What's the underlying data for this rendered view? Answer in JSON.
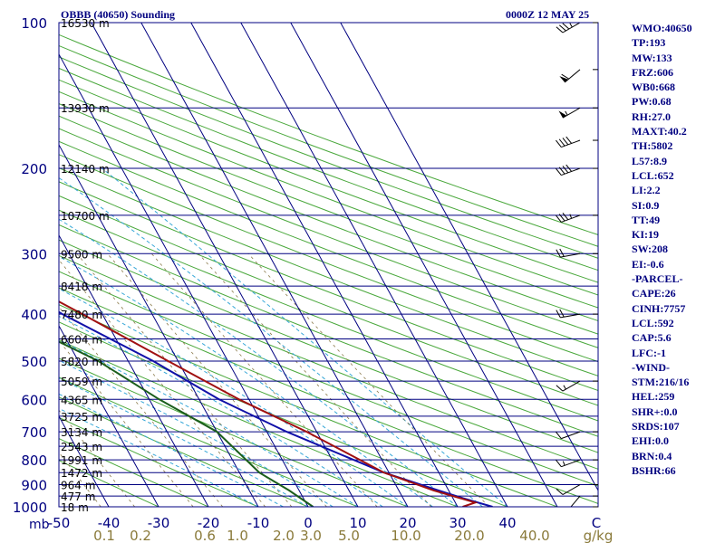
{
  "header": {
    "station": "OBBB (40650) Sounding",
    "time": "0000Z 12 MAY 25"
  },
  "indices": [
    "WMO:40650",
    "TP:193",
    "MW:133",
    "FRZ:606",
    "WB0:668",
    "PW:0.68",
    "RH:27.0",
    "MAXT:40.2",
    "TH:5802",
    "L57:8.9",
    "LCL:652",
    "LI:2.2",
    "SI:0.9",
    "TT:49",
    "KI:19",
    "SW:208",
    "EI:-0.6",
    "-PARCEL-",
    "CAPE:26",
    "CINH:7757",
    "LCL:592",
    "CAP:5.6",
    "LFC:-1",
    "-WIND-",
    "STM:216/16",
    "HEL:259",
    "SHR+:0.0",
    "SRDS:107",
    "EHI:0.0",
    "BRN:0.4",
    "BSHR:66"
  ],
  "colors": {
    "isobar": "#000080",
    "isotherm": "#000080",
    "dry_adiabat": "#4aa83c",
    "moist_adiabat": "#38a8d8",
    "mixing_ratio": "#8a7a4a",
    "temperature": "#a01010",
    "dewpoint": "#1b5e1b",
    "parcel": "#1010a8",
    "axis_text": "#000080",
    "mixing_ratio_text": "#8a7a3a"
  },
  "chart_data": {
    "type": "skew-t",
    "y_axis_label": "mb",
    "x_axis_label": "C",
    "mixing_ratio_unit": "g/kg",
    "pressure_ticks": [
      100,
      200,
      300,
      400,
      500,
      600,
      700,
      800,
      900,
      1000
    ],
    "temperature_ticks": [
      -50,
      -40,
      -30,
      -20,
      -10,
      0,
      10,
      20,
      30,
      40
    ],
    "mixing_ratio_ticks": [
      "0.1",
      "0.2",
      "0.6",
      "1.0",
      "2.0",
      "3.0",
      "5.0",
      "10.0",
      "20.0",
      "40.0"
    ],
    "height_labels": [
      {
        "p": 100,
        "label": "16530 m"
      },
      {
        "p": 150,
        "label": "13930 m"
      },
      {
        "p": 200,
        "label": "12140 m"
      },
      {
        "p": 250,
        "label": "10700 m"
      },
      {
        "p": 300,
        "label": "9500 m"
      },
      {
        "p": 350,
        "label": "8418 m"
      },
      {
        "p": 400,
        "label": "7480 m"
      },
      {
        "p": 450,
        "label": "6604 m"
      },
      {
        "p": 500,
        "label": "5820 m"
      },
      {
        "p": 550,
        "label": "5059 m"
      },
      {
        "p": 600,
        "label": "4365 m"
      },
      {
        "p": 650,
        "label": "3725 m"
      },
      {
        "p": 700,
        "label": "3134 m"
      },
      {
        "p": 750,
        "label": "2543 m"
      },
      {
        "p": 800,
        "label": "1991 m"
      },
      {
        "p": 850,
        "label": "1472 m"
      },
      {
        "p": 900,
        "label": "964 m"
      },
      {
        "p": 950,
        "label": "477 m"
      },
      {
        "p": 1000,
        "label": "18 m"
      }
    ],
    "temperature_profile": [
      [
        1000,
        31
      ],
      [
        980,
        34
      ],
      [
        925,
        27
      ],
      [
        850,
        19
      ],
      [
        700,
        8
      ],
      [
        600,
        -2
      ],
      [
        500,
        -12
      ],
      [
        400,
        -24
      ],
      [
        300,
        -40
      ],
      [
        250,
        -50
      ],
      [
        200,
        -54
      ],
      [
        175,
        -55
      ],
      [
        150,
        -60
      ],
      [
        125,
        -66
      ],
      [
        100,
        -75
      ]
    ],
    "dewpoint_profile": [
      [
        1000,
        1
      ],
      [
        925,
        -2
      ],
      [
        850,
        -6
      ],
      [
        700,
        -10
      ],
      [
        600,
        -18
      ],
      [
        500,
        -26
      ],
      [
        400,
        -40
      ],
      [
        300,
        -46
      ],
      [
        250,
        -66
      ],
      [
        200,
        -70
      ],
      [
        150,
        -74
      ],
      [
        125,
        -80
      ],
      [
        100,
        -80
      ]
    ],
    "parcel_profile": [
      [
        1000,
        37
      ],
      [
        960,
        32
      ],
      [
        925,
        28
      ],
      [
        850,
        19
      ],
      [
        700,
        4
      ],
      [
        600,
        -6
      ],
      [
        500,
        -15
      ],
      [
        400,
        -28
      ],
      [
        300,
        -42
      ],
      [
        250,
        -52
      ],
      [
        200,
        -62
      ],
      [
        150,
        -76
      ],
      [
        125,
        -86
      ],
      [
        110,
        -93
      ]
    ],
    "wind_barbs": [
      {
        "p": 1000,
        "dir": 180,
        "spd": 5
      },
      {
        "p": 950,
        "dir": 220,
        "spd": 10
      },
      {
        "p": 900,
        "dir": 240,
        "spd": 10
      },
      {
        "p": 800,
        "dir": 250,
        "spd": 15
      },
      {
        "p": 700,
        "dir": 250,
        "spd": 10
      },
      {
        "p": 550,
        "dir": 240,
        "spd": 15
      },
      {
        "p": 400,
        "dir": 260,
        "spd": 20
      },
      {
        "p": 300,
        "dir": 260,
        "spd": 20
      },
      {
        "p": 250,
        "dir": 250,
        "spd": 35
      },
      {
        "p": 200,
        "dir": 250,
        "spd": 40
      },
      {
        "p": 175,
        "dir": 250,
        "spd": 40
      },
      {
        "p": 150,
        "dir": 240,
        "spd": 55
      },
      {
        "p": 125,
        "dir": 230,
        "spd": 60
      },
      {
        "p": 100,
        "dir": 240,
        "spd": 35
      }
    ]
  }
}
